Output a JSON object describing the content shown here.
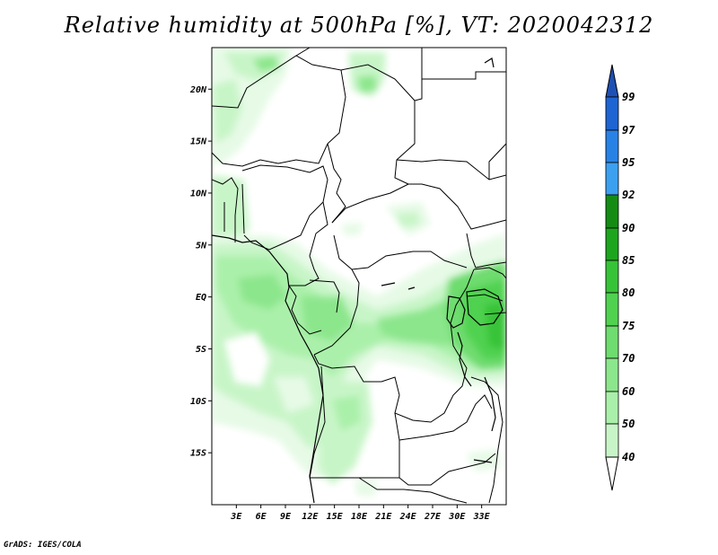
{
  "title": "Relative humidity at 500hPa [%], VT: 2020042312",
  "credit": "GrADS: IGES/COLA",
  "map": {
    "type": "contour-map",
    "variable": "Relative humidity",
    "level": "500hPa",
    "units": "%",
    "valid_time": "2020042312",
    "region": "Central Africa",
    "lon_range": [
      0,
      36
    ],
    "lat_range": [
      -20,
      24
    ],
    "lon_ticks": [
      "3E",
      "6E",
      "9E",
      "12E",
      "15E",
      "18E",
      "21E",
      "24E",
      "27E",
      "30E",
      "33E"
    ],
    "lat_ticks": [
      "20N",
      "15N",
      "10N",
      "5N",
      "EQ",
      "5S",
      "10S",
      "15S"
    ]
  },
  "colorbar": {
    "levels": [
      "99",
      "97",
      "95",
      "92",
      "90",
      "85",
      "80",
      "75",
      "70",
      "60",
      "50",
      "40"
    ],
    "colors": [
      "#1e64d2",
      "#2882e6",
      "#3ca0f0",
      "#148c14",
      "#1ea51e",
      "#37c337",
      "#50d250",
      "#6edc6e",
      "#8ce68c",
      "#aaf0aa",
      "#c8f5c8",
      "#e6fae6"
    ],
    "top_arrow_color": "#1e50b4",
    "bottom_arrow_color": "#ffffff"
  }
}
